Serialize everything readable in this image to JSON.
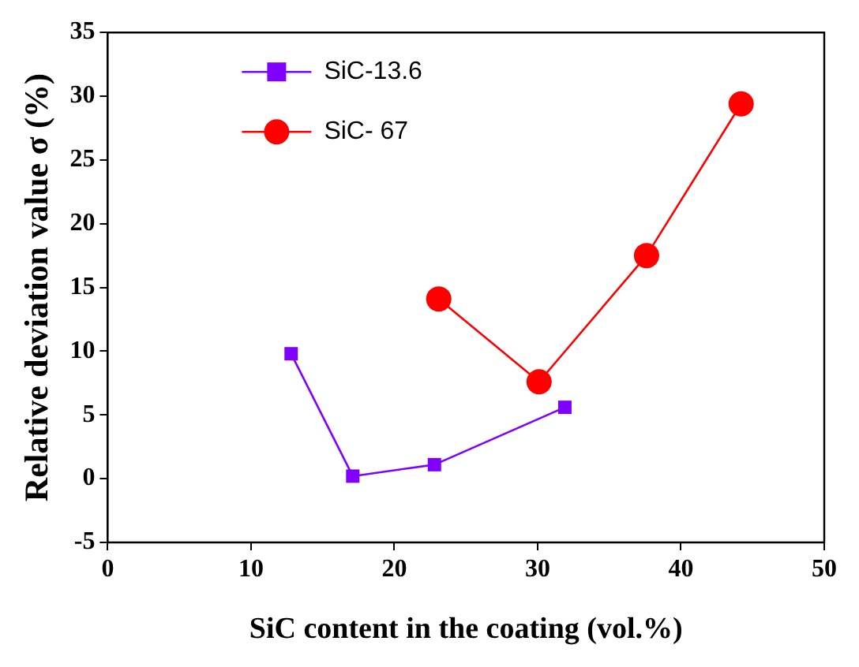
{
  "chart_data": {
    "type": "line",
    "xlabel": "SiC content in the coating (vol.%)",
    "ylabel": "Relative deviation value σ (%)",
    "xlim": [
      0,
      50
    ],
    "xticks": [
      0,
      10,
      20,
      30,
      40,
      50
    ],
    "ylim": [
      -5,
      35
    ],
    "yticks": [
      -5,
      0,
      5,
      10,
      15,
      20,
      25,
      30,
      35
    ],
    "grid": false,
    "legend": "top left",
    "line_style": "solid",
    "series": [
      {
        "name": "SiC-13.6",
        "color": "#8000ff",
        "marker": "square",
        "x": [
          12.8,
          17.1,
          22.8,
          31.9
        ],
        "values": [
          9.8,
          0.2,
          1.1,
          5.6
        ]
      },
      {
        "name": "SiC- 67",
        "color": "#ff0000",
        "marker": "circle",
        "x": [
          23.1,
          30.1,
          37.6,
          44.2
        ],
        "values": [
          14.1,
          7.6,
          17.5,
          29.4
        ]
      }
    ]
  }
}
